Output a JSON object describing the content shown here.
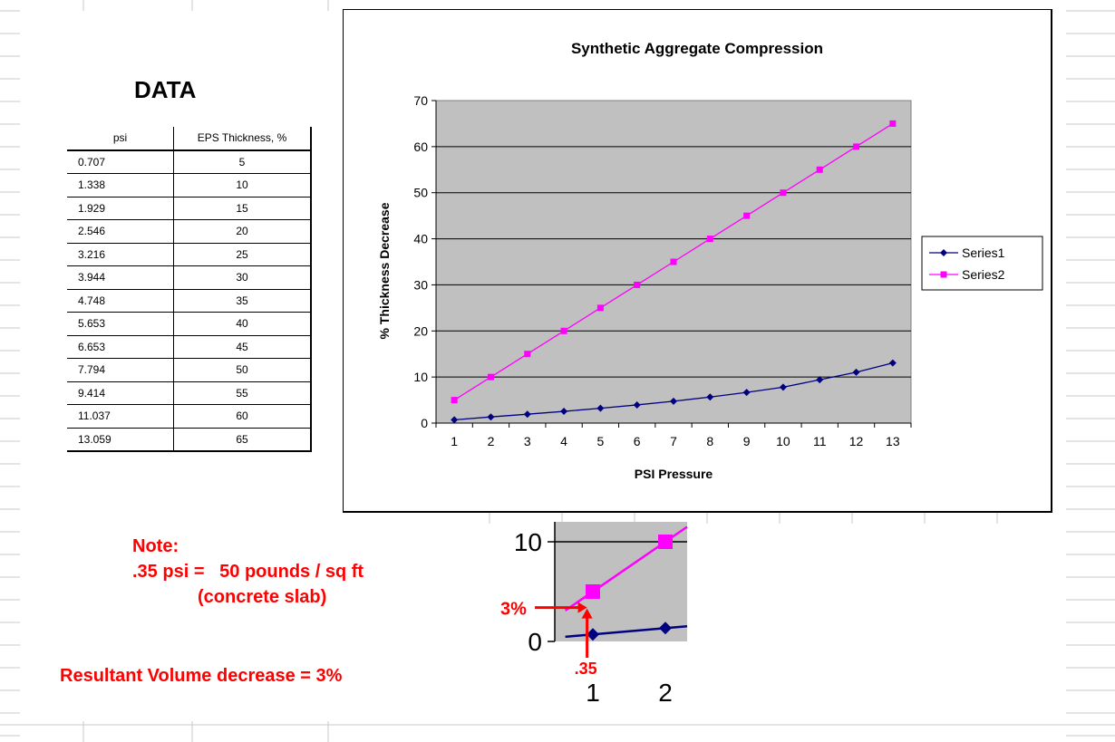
{
  "colors": {
    "plot_bg": "#c0c0c0",
    "series1": "#000080",
    "series2": "#ff00ff",
    "annotation": "#ff0000"
  },
  "table": {
    "title": "DATA",
    "headers": [
      "psi",
      "EPS Thickness, %"
    ],
    "rows": [
      [
        "0.707",
        "5"
      ],
      [
        "1.338",
        "10"
      ],
      [
        "1.929",
        "15"
      ],
      [
        "2.546",
        "20"
      ],
      [
        "3.216",
        "25"
      ],
      [
        "3.944",
        "30"
      ],
      [
        "4.748",
        "35"
      ],
      [
        "5.653",
        "40"
      ],
      [
        "6.653",
        "45"
      ],
      [
        "7.794",
        "50"
      ],
      [
        "9.414",
        "55"
      ],
      [
        "11.037",
        "60"
      ],
      [
        "13.059",
        "65"
      ]
    ]
  },
  "notes": {
    "line1": "Note:",
    "line2": ".35 psi =   50 pounds / sq ft",
    "line3": "(concrete slab)",
    "line4": "Resultant Volume decrease = 3%"
  },
  "chart_data": [
    {
      "type": "line",
      "title": "Synthetic Aggregate Compression",
      "xlabel": "PSI Pressure",
      "ylabel": "% Thickness Decrease",
      "categories": [
        "1",
        "2",
        "3",
        "4",
        "5",
        "6",
        "7",
        "8",
        "9",
        "10",
        "11",
        "12",
        "13"
      ],
      "ylim": [
        0,
        70
      ],
      "yticks": [
        "0",
        "10",
        "20",
        "30",
        "40",
        "50",
        "60",
        "70"
      ],
      "grid": true,
      "legend_position": "right",
      "series": [
        {
          "name": "Series1",
          "marker": "diamond",
          "values": [
            0.707,
            1.338,
            1.929,
            2.546,
            3.216,
            3.944,
            4.748,
            5.653,
            6.653,
            7.794,
            9.414,
            11.037,
            13.059
          ]
        },
        {
          "name": "Series2",
          "marker": "square",
          "values": [
            5,
            10,
            15,
            20,
            25,
            30,
            35,
            40,
            45,
            50,
            55,
            60,
            65
          ]
        }
      ]
    },
    {
      "type": "line",
      "categories": [
        "1",
        "2"
      ],
      "ylim": [
        0,
        12
      ],
      "yticks": [
        "0",
        "10"
      ],
      "series": [
        {
          "marker": "diamond",
          "values": [
            0.707,
            1.338
          ]
        },
        {
          "marker": "square",
          "values": [
            5,
            10
          ]
        }
      ],
      "annotations": {
        "y_marker": "3%",
        "x_marker": ".35"
      }
    }
  ]
}
